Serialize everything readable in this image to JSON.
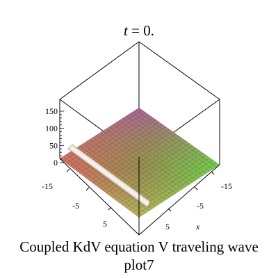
{
  "chart_data": {
    "type": "surface3d",
    "title_prefix": "t",
    "title_suffix": " = 0.",
    "caption_line1": "Coupled KdV equation V traveling wave",
    "caption_line2": "plot7",
    "xlabel": "x",
    "x_ticks": [
      "-15",
      "-5",
      "5"
    ],
    "y_ticks": [
      "-15",
      "-5",
      "5"
    ],
    "z_ticks": [
      "150",
      "100",
      "50",
      "0"
    ],
    "z_tick_values": [
      150,
      100,
      50,
      0
    ],
    "zlim": [
      0,
      150
    ],
    "colors": {
      "corner_magenta": "#c060b0",
      "corner_pink": "#f05a6e",
      "corner_green": "#60e050",
      "corner_yellow_green": "#c4dc54",
      "mesh": "#3a3a3a",
      "ridge": "#f0e6dc"
    }
  }
}
